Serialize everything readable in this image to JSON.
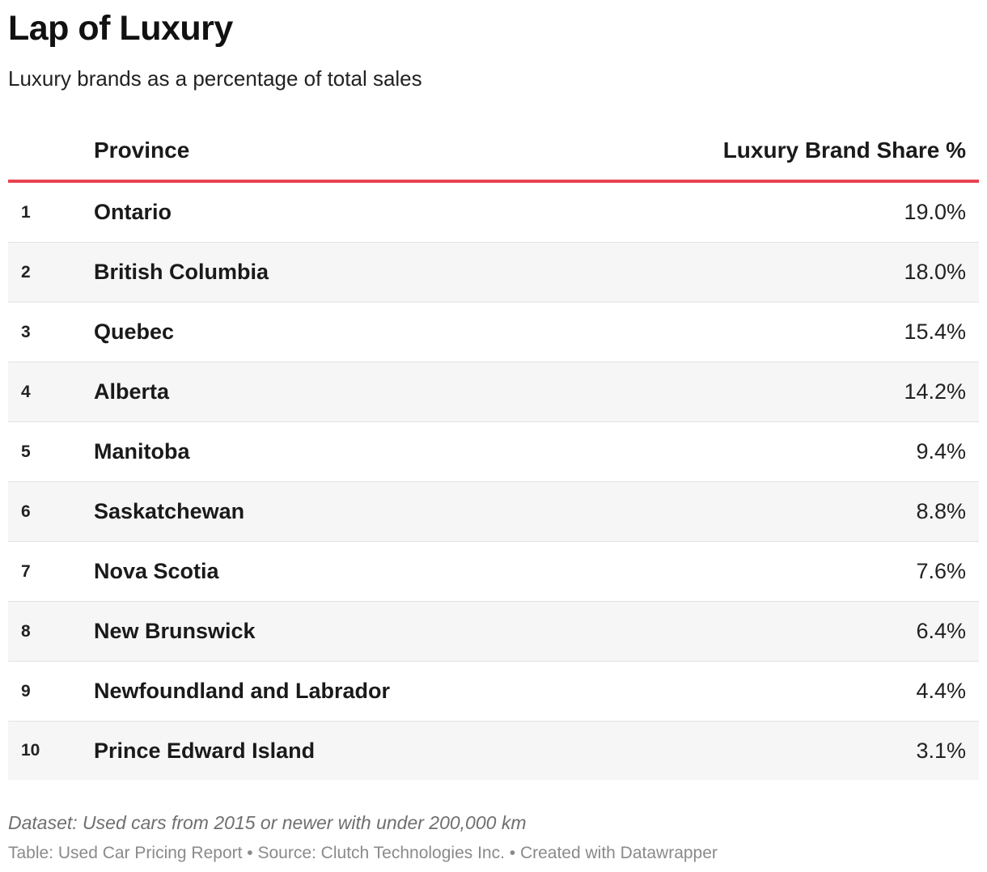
{
  "chart_data": {
    "type": "table",
    "title": "Lap of Luxury",
    "subtitle": "Luxury brands as a percentage of total sales",
    "columns": [
      "",
      "Province",
      "Luxury Brand Share %"
    ],
    "rows": [
      {
        "rank": "1",
        "province": "Ontario",
        "share": "19.0%",
        "value": 19.0
      },
      {
        "rank": "2",
        "province": "British Columbia",
        "share": "18.0%",
        "value": 18.0
      },
      {
        "rank": "3",
        "province": "Quebec",
        "share": "15.4%",
        "value": 15.4
      },
      {
        "rank": "4",
        "province": "Alberta",
        "share": "14.2%",
        "value": 14.2
      },
      {
        "rank": "5",
        "province": "Manitoba",
        "share": "9.4%",
        "value": 9.4
      },
      {
        "rank": "6",
        "province": "Saskatchewan",
        "share": "8.8%",
        "value": 8.8
      },
      {
        "rank": "7",
        "province": "Nova Scotia",
        "share": "7.6%",
        "value": 7.6
      },
      {
        "rank": "8",
        "province": "New Brunswick",
        "share": "6.4%",
        "value": 6.4
      },
      {
        "rank": "9",
        "province": "Newfoundland and Labrador",
        "share": "4.4%",
        "value": 4.4
      },
      {
        "rank": "10",
        "province": "Prince Edward Island",
        "share": "3.1%",
        "value": 3.1
      }
    ],
    "notes": "Dataset: Used cars from 2015 or newer with under 200,000 km",
    "footer": "Table: Used Car Pricing Report • Source: Clutch Technologies Inc. • Created with Datawrapper"
  },
  "colors": {
    "header_rule": "#e8434f",
    "stripe": "#f6f6f6",
    "row_rule": "#e2e2e2"
  }
}
